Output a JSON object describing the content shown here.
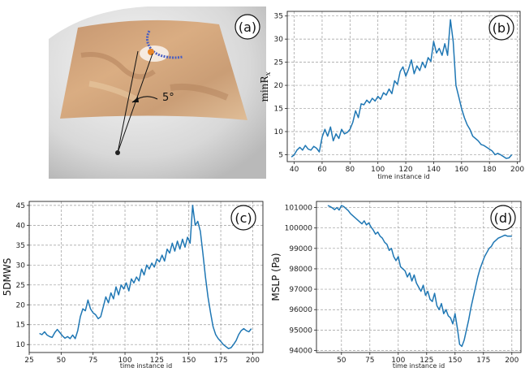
{
  "panels": {
    "a": {
      "tag": "(a)",
      "angle_label": "5°"
    },
    "b": {
      "tag": "(b)"
    },
    "c": {
      "tag": "(c)"
    },
    "d": {
      "tag": "(d)"
    }
  },
  "colors": {
    "line": "#1f77b4"
  },
  "chart_data": [
    {
      "id": "b",
      "type": "line",
      "xlabel": "time instance id",
      "ylabel": "minR",
      "ylabel_subscript": "x",
      "xlim": [
        35,
        202
      ],
      "ylim": [
        3.5,
        36
      ],
      "xticks": [
        40,
        60,
        80,
        100,
        120,
        140,
        160,
        180,
        200
      ],
      "yticks": [
        5,
        10,
        15,
        20,
        25,
        30,
        35
      ],
      "grid": true,
      "x": [
        38,
        40,
        42,
        44,
        46,
        48,
        50,
        52,
        54,
        56,
        58,
        60,
        62,
        64,
        66,
        68,
        70,
        72,
        74,
        76,
        78,
        80,
        82,
        84,
        86,
        88,
        90,
        92,
        94,
        96,
        98,
        100,
        102,
        104,
        106,
        108,
        110,
        112,
        114,
        116,
        118,
        120,
        122,
        124,
        126,
        128,
        130,
        132,
        134,
        136,
        138,
        140,
        142,
        144,
        146,
        148,
        150,
        152,
        154,
        156,
        158,
        160,
        162,
        164,
        166,
        168,
        170,
        172,
        174,
        176,
        178,
        180,
        182,
        184,
        186,
        188,
        190,
        192,
        194,
        196
      ],
      "values": [
        4.5,
        5.0,
        6.0,
        6.6,
        6.0,
        7.0,
        6.2,
        6.0,
        6.8,
        6.4,
        5.6,
        8.8,
        10.5,
        9.0,
        11.0,
        8.0,
        9.5,
        8.5,
        10.5,
        9.5,
        9.8,
        10.5,
        12.0,
        14.5,
        13.0,
        16.0,
        15.8,
        16.8,
        16.2,
        17.2,
        16.6,
        17.6,
        17.0,
        18.4,
        17.9,
        19.2,
        18.2,
        21.0,
        20.2,
        23.0,
        24.0,
        22.0,
        23.5,
        25.5,
        22.5,
        24.2,
        23.2,
        25.0,
        23.8,
        26.0,
        25.2,
        29.5,
        27.0,
        28.0,
        26.5,
        29.0,
        26.5,
        34.2,
        29.5,
        20.0,
        17.5,
        15.0,
        13.0,
        11.5,
        10.5,
        9.0,
        8.5,
        8.0,
        7.2,
        7.0,
        6.6,
        6.2,
        5.8,
        5.0,
        5.3,
        5.0,
        4.6,
        4.2,
        4.3,
        5.0
      ]
    },
    {
      "id": "c",
      "type": "line",
      "xlabel": "time instance id",
      "ylabel": "5DMWS",
      "xlim": [
        25,
        208
      ],
      "ylim": [
        8,
        46
      ],
      "xticks": [
        25,
        50,
        75,
        100,
        125,
        150,
        175,
        200
      ],
      "yticks": [
        10,
        15,
        20,
        25,
        30,
        35,
        40,
        45
      ],
      "grid": true,
      "x": [
        33,
        35,
        37,
        39,
        41,
        43,
        45,
        47,
        49,
        51,
        53,
        55,
        57,
        59,
        61,
        63,
        65,
        67,
        69,
        71,
        73,
        75,
        77,
        79,
        81,
        83,
        85,
        87,
        89,
        91,
        93,
        95,
        97,
        99,
        101,
        103,
        105,
        107,
        109,
        111,
        113,
        115,
        117,
        119,
        121,
        123,
        125,
        127,
        129,
        131,
        133,
        135,
        137,
        139,
        141,
        143,
        145,
        147,
        149,
        151,
        153,
        155,
        157,
        159,
        161,
        163,
        165,
        167,
        169,
        171,
        173,
        175,
        177,
        179,
        181,
        183,
        185,
        187,
        189,
        191,
        193,
        195,
        197,
        199
      ],
      "values": [
        12.8,
        12.5,
        13.2,
        12.4,
        12.0,
        11.8,
        13.0,
        13.8,
        13.0,
        12.2,
        11.6,
        12.0,
        11.5,
        12.4,
        11.5,
        13.5,
        17.0,
        19.0,
        18.5,
        21.2,
        19.0,
        18.0,
        17.5,
        16.5,
        17.0,
        19.5,
        22.0,
        20.5,
        23.0,
        21.5,
        24.5,
        22.5,
        25.0,
        24.0,
        25.5,
        23.5,
        26.5,
        25.5,
        27.0,
        26.0,
        29.0,
        27.5,
        30.0,
        29.0,
        30.5,
        29.5,
        31.5,
        30.8,
        32.5,
        31.0,
        34.0,
        33.0,
        35.5,
        33.5,
        36.0,
        34.0,
        36.5,
        34.5,
        37.0,
        35.5,
        45.0,
        40.0,
        41.0,
        38.5,
        33.0,
        27.0,
        22.0,
        18.0,
        14.5,
        12.5,
        11.5,
        10.8,
        10.0,
        9.5,
        9.0,
        9.2,
        10.0,
        11.0,
        12.5,
        13.5,
        14.0,
        13.5,
        13.2,
        14.0
      ]
    },
    {
      "id": "d",
      "type": "line",
      "xlabel": "time instance id",
      "ylabel": "MSLP (Pa)",
      "xlim": [
        28,
        208
      ],
      "ylim": [
        93900,
        101300
      ],
      "xticks": [
        50,
        75,
        100,
        125,
        150,
        175,
        200
      ],
      "yticks": [
        94000,
        95000,
        96000,
        97000,
        98000,
        99000,
        100000,
        101000
      ],
      "grid": true,
      "x": [
        38,
        40,
        42,
        44,
        46,
        48,
        50,
        52,
        54,
        56,
        58,
        60,
        62,
        64,
        66,
        68,
        70,
        72,
        74,
        76,
        78,
        80,
        82,
        84,
        86,
        88,
        90,
        92,
        94,
        96,
        98,
        100,
        102,
        104,
        106,
        108,
        110,
        112,
        114,
        116,
        118,
        120,
        122,
        124,
        126,
        128,
        130,
        132,
        134,
        136,
        138,
        140,
        142,
        144,
        146,
        148,
        150,
        152,
        154,
        156,
        158,
        160,
        162,
        164,
        166,
        168,
        170,
        172,
        174,
        176,
        178,
        180,
        182,
        184,
        186,
        188,
        190,
        192,
        194,
        196,
        198,
        200
      ],
      "values": [
        101100,
        101050,
        100980,
        100900,
        101000,
        100880,
        101100,
        101050,
        100950,
        100850,
        100700,
        100600,
        100500,
        100400,
        100300,
        100200,
        100350,
        100150,
        100250,
        100050,
        99900,
        99700,
        99800,
        99600,
        99500,
        99300,
        99200,
        98900,
        99000,
        98600,
        98400,
        98600,
        98100,
        98000,
        97900,
        97600,
        97800,
        97400,
        97700,
        97300,
        97100,
        96900,
        97200,
        96700,
        96900,
        96500,
        96400,
        96800,
        96200,
        96000,
        96300,
        95800,
        96000,
        95700,
        95600,
        95300,
        95800,
        95100,
        94300,
        94200,
        94500,
        95000,
        95500,
        96100,
        96600,
        97100,
        97600,
        98000,
        98300,
        98600,
        98800,
        99000,
        99100,
        99300,
        99400,
        99500,
        99550,
        99600,
        99650,
        99600,
        99600,
        99600
      ]
    }
  ]
}
